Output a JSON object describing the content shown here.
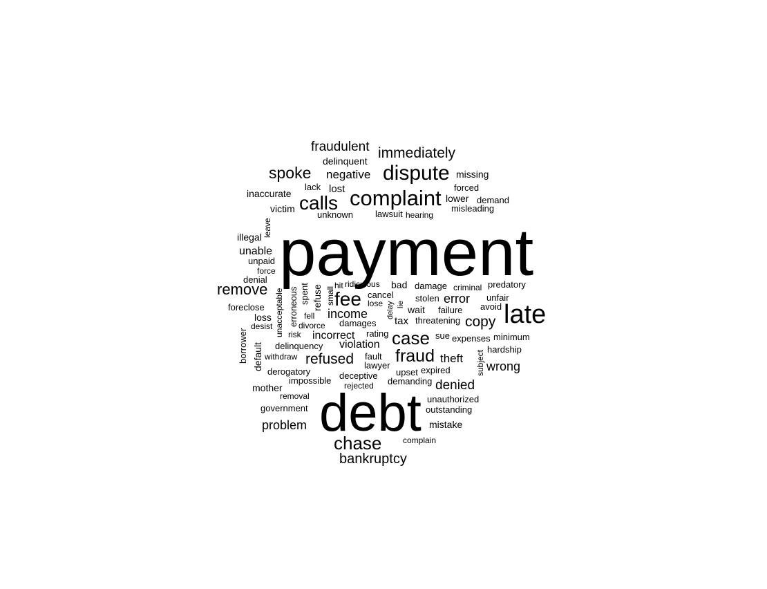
{
  "background": "#ffffff",
  "text_color": "#000000",
  "words": [
    {
      "text": "payment"
    },
    {
      "text": "debt"
    },
    {
      "text": "late"
    },
    {
      "text": "dispute"
    },
    {
      "text": "complaint"
    },
    {
      "text": "calls"
    },
    {
      "text": "fee"
    },
    {
      "text": "chase"
    },
    {
      "text": "case"
    },
    {
      "text": "fraud"
    },
    {
      "text": "immediately"
    },
    {
      "text": "spoke"
    },
    {
      "text": "remove"
    },
    {
      "text": "fraudulent"
    },
    {
      "text": "refused"
    },
    {
      "text": "copy"
    },
    {
      "text": "bankruptcy"
    },
    {
      "text": "income"
    },
    {
      "text": "denied"
    },
    {
      "text": "wrong"
    },
    {
      "text": "problem"
    },
    {
      "text": "error"
    },
    {
      "text": "negative"
    },
    {
      "text": "incorrect"
    },
    {
      "text": "theft"
    },
    {
      "text": "violation"
    },
    {
      "text": "unable"
    },
    {
      "text": "tax"
    },
    {
      "text": "lost"
    },
    {
      "text": "delinquent"
    },
    {
      "text": "missing"
    },
    {
      "text": "inaccurate"
    },
    {
      "text": "lack"
    },
    {
      "text": "forced"
    },
    {
      "text": "lower"
    },
    {
      "text": "demand"
    },
    {
      "text": "victim"
    },
    {
      "text": "misleading"
    },
    {
      "text": "unknown"
    },
    {
      "text": "lawsuit"
    },
    {
      "text": "hearing"
    },
    {
      "text": "leave"
    },
    {
      "text": "illegal"
    },
    {
      "text": "unpaid"
    },
    {
      "text": "force"
    },
    {
      "text": "denial"
    },
    {
      "text": "unacceptable"
    },
    {
      "text": "erroneous"
    },
    {
      "text": "spent"
    },
    {
      "text": "refuse"
    },
    {
      "text": "small"
    },
    {
      "text": "hit"
    },
    {
      "text": "ridiculous"
    },
    {
      "text": "bad"
    },
    {
      "text": "damage"
    },
    {
      "text": "criminal"
    },
    {
      "text": "predatory"
    },
    {
      "text": "cancel"
    },
    {
      "text": "lose"
    },
    {
      "text": "lie"
    },
    {
      "text": "delay"
    },
    {
      "text": "stolen"
    },
    {
      "text": "unfair"
    },
    {
      "text": "avoid"
    },
    {
      "text": "wait"
    },
    {
      "text": "failure"
    },
    {
      "text": "threatening"
    },
    {
      "text": "foreclose"
    },
    {
      "text": "loss"
    },
    {
      "text": "fell"
    },
    {
      "text": "divorce"
    },
    {
      "text": "damages"
    },
    {
      "text": "desist"
    },
    {
      "text": "risk"
    },
    {
      "text": "rating"
    },
    {
      "text": "sue"
    },
    {
      "text": "expenses"
    },
    {
      "text": "minimum"
    },
    {
      "text": "borrower"
    },
    {
      "text": "default"
    },
    {
      "text": "delinquency"
    },
    {
      "text": "withdraw"
    },
    {
      "text": "fault"
    },
    {
      "text": "lawyer"
    },
    {
      "text": "hardship"
    },
    {
      "text": "subject"
    },
    {
      "text": "derogatory"
    },
    {
      "text": "deceptive"
    },
    {
      "text": "upset"
    },
    {
      "text": "expired"
    },
    {
      "text": "impossible"
    },
    {
      "text": "demanding"
    },
    {
      "text": "rejected"
    },
    {
      "text": "mother"
    },
    {
      "text": "removal"
    },
    {
      "text": "unauthorized"
    },
    {
      "text": "government"
    },
    {
      "text": "outstanding"
    },
    {
      "text": "mistake"
    },
    {
      "text": "complain"
    }
  ]
}
